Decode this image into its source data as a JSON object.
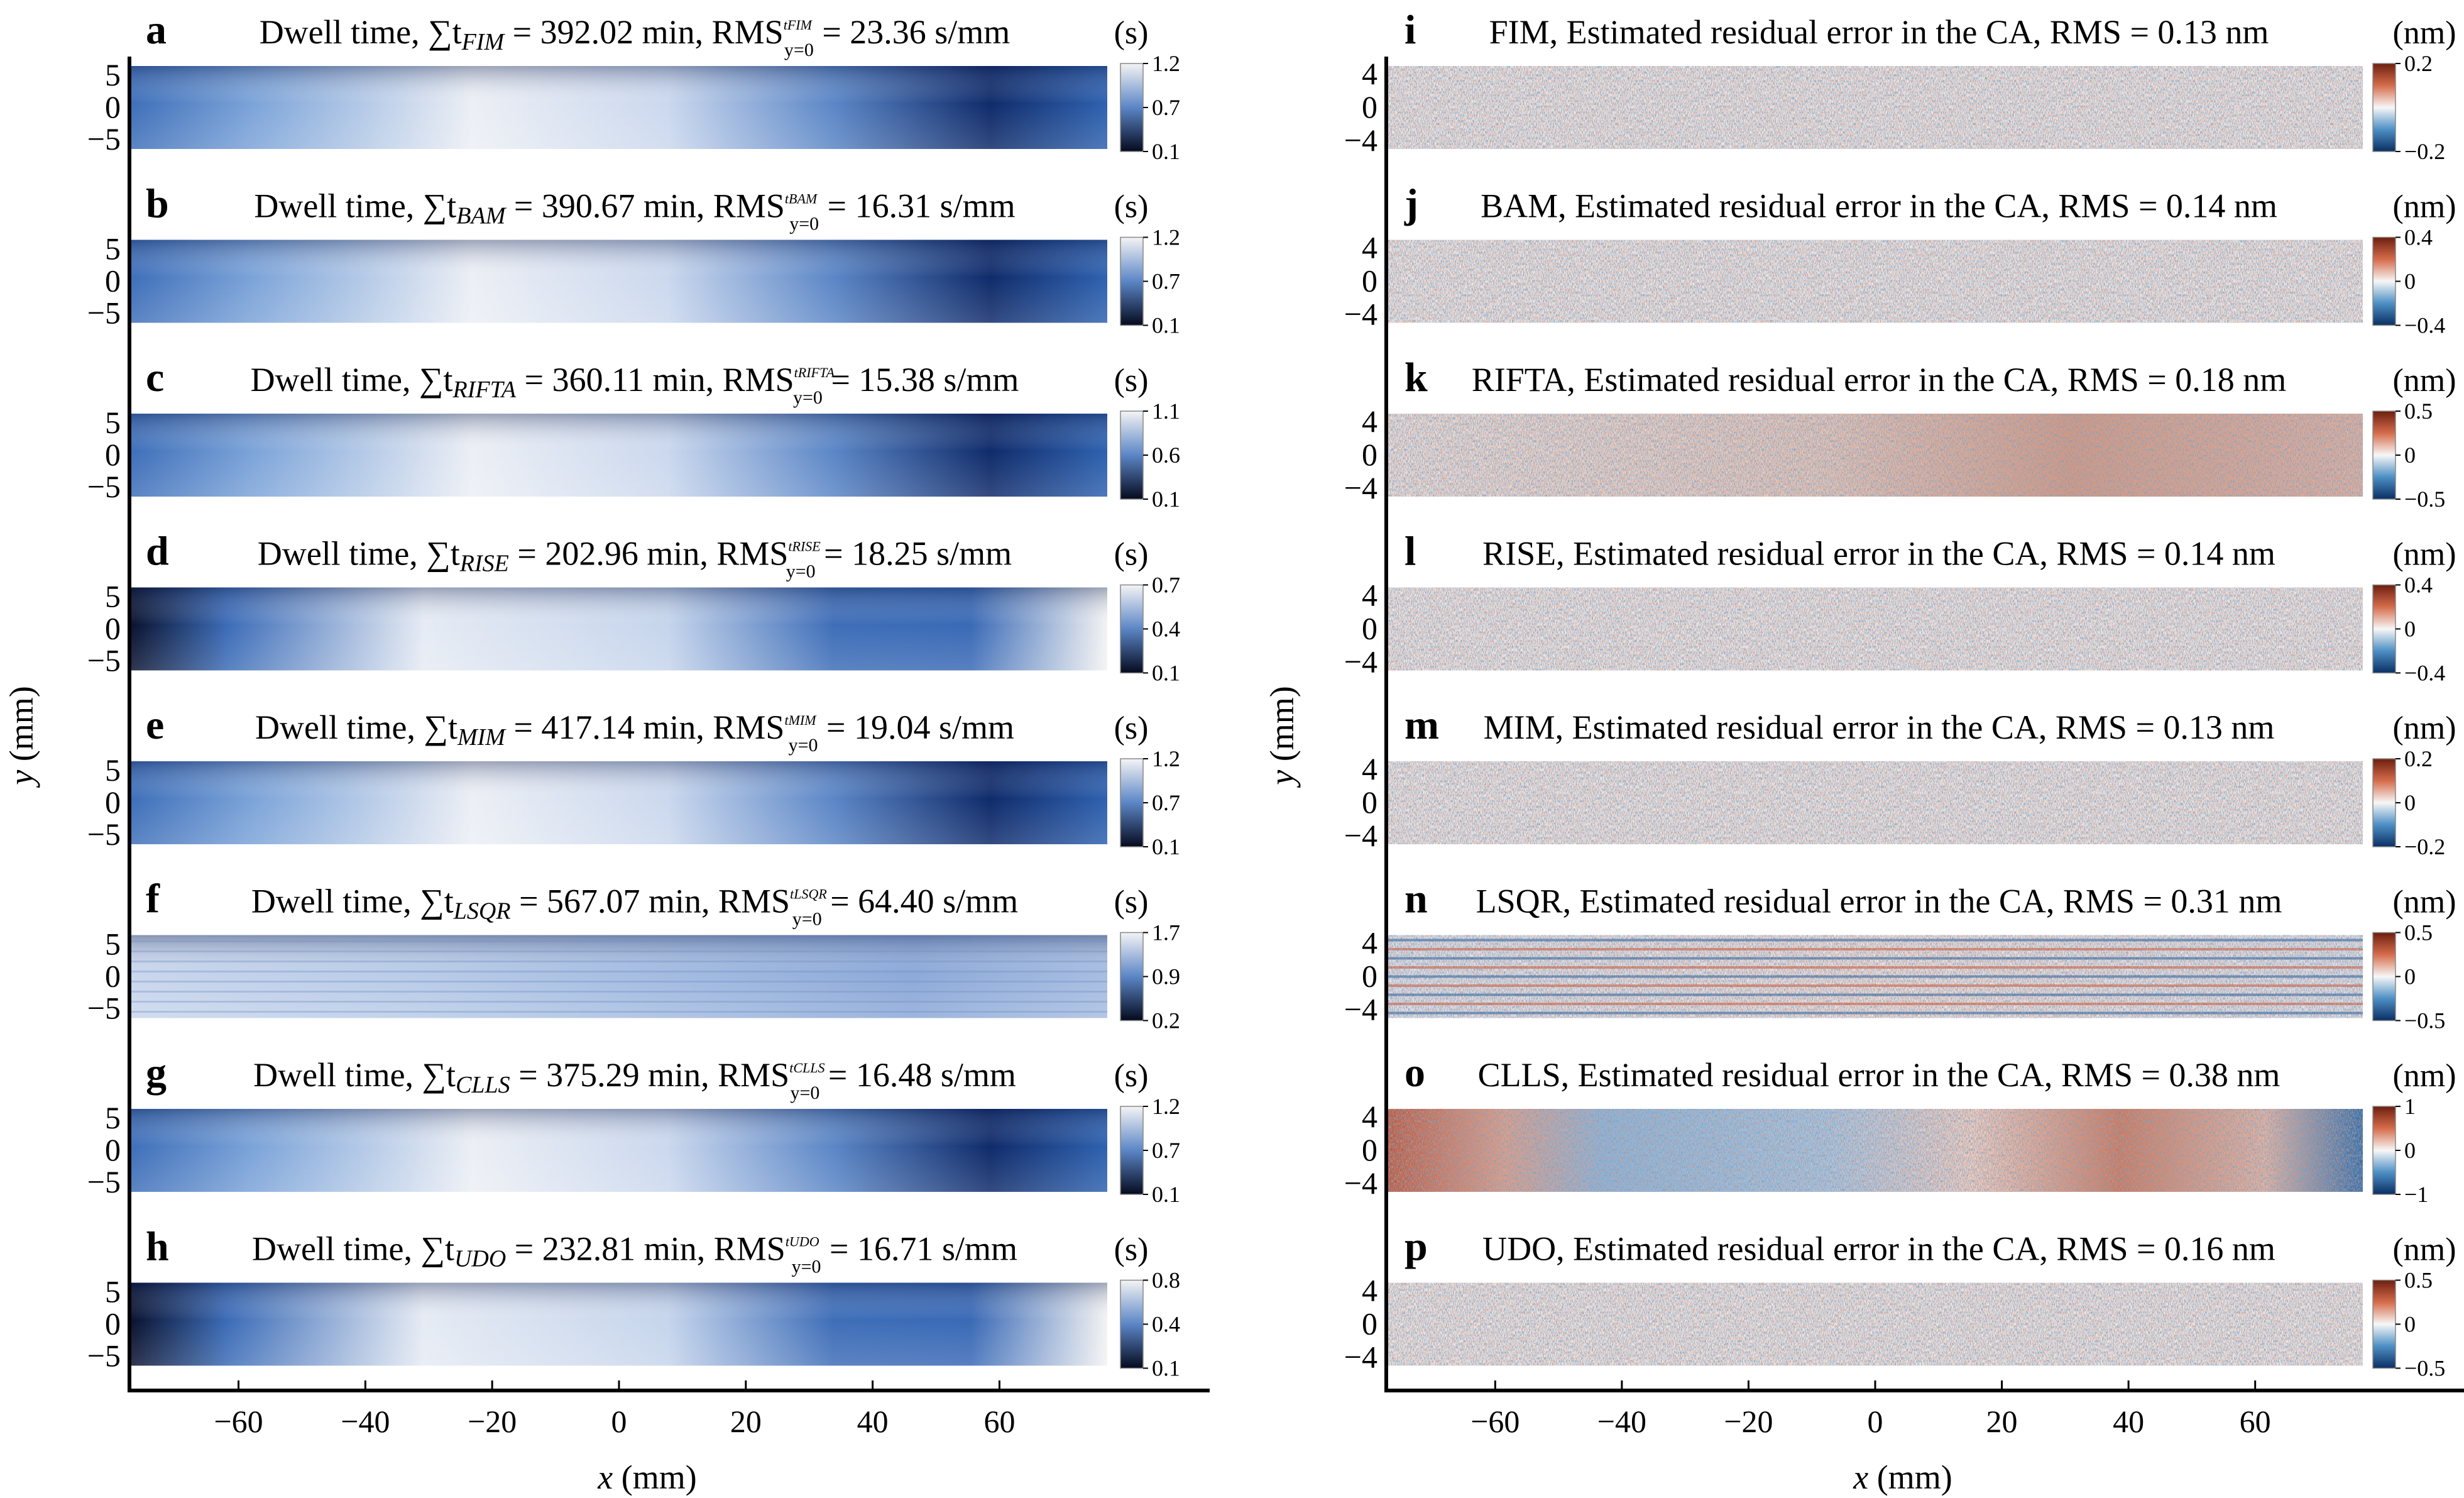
{
  "figure": {
    "left_column": {
      "ylabel": "y (mm)",
      "xlabel": "x (mm)",
      "xticks": [
        "−60",
        "−40",
        "−20",
        "0",
        "20",
        "40",
        "60"
      ],
      "yticks": [
        "5",
        "0",
        "−5"
      ],
      "colorbar_unit": "(s)"
    },
    "right_column": {
      "ylabel": "y (mm)",
      "xlabel": "x (mm)",
      "xticks": [
        "−60",
        "−40",
        "−20",
        "0",
        "20",
        "40",
        "60"
      ],
      "yticks": [
        "4",
        "0",
        "−4"
      ],
      "colorbar_unit": "(nm)"
    }
  },
  "chart_data": [
    {
      "type": "heatmap",
      "panel": "a",
      "title_prefix": "Dwell time, ∑t",
      "method": "FIM",
      "title_mid": " = 392.02 min, RMS",
      "rms_sup": "tFIM",
      "rms_sub": "y=0",
      "title_suffix": " = 23.36 s/mm",
      "colorbar_ticks": [
        "1.2",
        "0.7",
        "0.1"
      ],
      "colormap": "blues",
      "total_time_min": 392.02,
      "rms_s_per_mm": 23.36,
      "xlim": [
        -77,
        77
      ],
      "ylim": [
        -6.5,
        6.5
      ],
      "profile": "bright-center-dark-right"
    },
    {
      "type": "heatmap",
      "panel": "b",
      "title_prefix": "Dwell time, ∑t",
      "method": "BAM",
      "title_mid": " = 390.67 min, RMS",
      "rms_sup": "tBAM",
      "rms_sub": "y=0",
      "title_suffix": " = 16.31 s/mm",
      "colorbar_ticks": [
        "1.2",
        "0.7",
        "0.1"
      ],
      "colormap": "blues",
      "total_time_min": 390.67,
      "rms_s_per_mm": 16.31,
      "xlim": [
        -77,
        77
      ],
      "ylim": [
        -6.5,
        6.5
      ],
      "profile": "bright-center-dark-right"
    },
    {
      "type": "heatmap",
      "panel": "c",
      "title_prefix": "Dwell time, ∑t",
      "method": "RIFTA",
      "title_mid": " = 360.11 min, RMS",
      "rms_sup": "tRIFTA",
      "rms_sub": "y=0",
      "title_suffix": " = 15.38 s/mm",
      "colorbar_ticks": [
        "1.1",
        "0.6",
        "0.1"
      ],
      "colormap": "blues",
      "total_time_min": 360.11,
      "rms_s_per_mm": 15.38,
      "xlim": [
        -77,
        77
      ],
      "ylim": [
        -6.5,
        6.5
      ],
      "profile": "bright-center-dark-right"
    },
    {
      "type": "heatmap",
      "panel": "d",
      "title_prefix": "Dwell time, ∑t",
      "method": "RISE",
      "title_mid": " = 202.96 min, RMS",
      "rms_sup": "tRISE",
      "rms_sub": "y=0",
      "title_suffix": " = 18.25 s/mm",
      "colorbar_ticks": [
        "0.7",
        "0.4",
        "0.1"
      ],
      "colormap": "blues",
      "total_time_min": 202.96,
      "rms_s_per_mm": 18.25,
      "xlim": [
        -77,
        77
      ],
      "ylim": [
        -6.5,
        6.5
      ],
      "profile": "dark-left-bright-ends"
    },
    {
      "type": "heatmap",
      "panel": "e",
      "title_prefix": "Dwell time, ∑t",
      "method": "MIM",
      "title_mid": " = 417.14 min, RMS",
      "rms_sup": "tMIM",
      "rms_sub": "y=0",
      "title_suffix": " = 19.04 s/mm",
      "colorbar_ticks": [
        "1.2",
        "0.7",
        "0.1"
      ],
      "colormap": "blues",
      "total_time_min": 417.14,
      "rms_s_per_mm": 19.04,
      "xlim": [
        -77,
        77
      ],
      "ylim": [
        -6.5,
        6.5
      ],
      "profile": "bright-center-dark-right"
    },
    {
      "type": "heatmap",
      "panel": "f",
      "title_prefix": "Dwell time, ∑t",
      "method": "LSQR",
      "title_mid": " = 567.07 min, RMS",
      "rms_sup": "tLSQR",
      "rms_sub": "y=0",
      "title_suffix": " = 64.40 s/mm",
      "colorbar_ticks": [
        "1.7",
        "0.9",
        "0.2"
      ],
      "colormap": "blues",
      "total_time_min": 567.07,
      "rms_s_per_mm": 64.4,
      "xlim": [
        -77,
        77
      ],
      "ylim": [
        -6.5,
        6.5
      ],
      "profile": "flat-striped"
    },
    {
      "type": "heatmap",
      "panel": "g",
      "title_prefix": "Dwell time, ∑t",
      "method": "CLLS",
      "title_mid": " = 375.29 min, RMS",
      "rms_sup": "tCLLS",
      "rms_sub": "y=0",
      "title_suffix": " = 16.48 s/mm",
      "colorbar_ticks": [
        "1.2",
        "0.7",
        "0.1"
      ],
      "colormap": "blues",
      "total_time_min": 375.29,
      "rms_s_per_mm": 16.48,
      "xlim": [
        -77,
        77
      ],
      "ylim": [
        -6.5,
        6.5
      ],
      "profile": "bright-center-dark-right"
    },
    {
      "type": "heatmap",
      "panel": "h",
      "title_prefix": "Dwell time, ∑t",
      "method": "UDO",
      "title_mid": " = 232.81 min, RMS",
      "rms_sup": "tUDO",
      "rms_sub": "y=0",
      "title_suffix": " = 16.71 s/mm",
      "colorbar_ticks": [
        "0.8",
        "0.4",
        "0.1"
      ],
      "colormap": "blues",
      "total_time_min": 232.81,
      "rms_s_per_mm": 16.71,
      "xlim": [
        -77,
        77
      ],
      "ylim": [
        -6.5,
        6.5
      ],
      "profile": "dark-left-bright-ends"
    },
    {
      "type": "heatmap",
      "panel": "i",
      "title": "FIM, Estimated residual error in the CA, RMS = 0.13 nm",
      "colorbar_ticks": [
        "0.2",
        "−0.2"
      ],
      "colormap": "red-white-blue",
      "rms_nm": 0.13,
      "xlim": [
        -77,
        77
      ],
      "ylim": [
        -5,
        5
      ],
      "profile": "noise"
    },
    {
      "type": "heatmap",
      "panel": "j",
      "title": "BAM, Estimated residual error in the CA, RMS = 0.14 nm",
      "colorbar_ticks": [
        "0.4",
        "0",
        "−0.4"
      ],
      "colormap": "red-white-blue",
      "rms_nm": 0.14,
      "xlim": [
        -77,
        77
      ],
      "ylim": [
        -5,
        5
      ],
      "profile": "noise"
    },
    {
      "type": "heatmap",
      "panel": "k",
      "title": "RIFTA, Estimated residual error in the CA, RMS = 0.18 nm",
      "colorbar_ticks": [
        "0.5",
        "0",
        "−0.5"
      ],
      "colormap": "red-white-blue",
      "rms_nm": 0.18,
      "xlim": [
        -77,
        77
      ],
      "ylim": [
        -5,
        5
      ],
      "profile": "noise-red-right"
    },
    {
      "type": "heatmap",
      "panel": "l",
      "title": "RISE, Estimated residual error in the CA, RMS = 0.14 nm",
      "colorbar_ticks": [
        "0.4",
        "0",
        "−0.4"
      ],
      "colormap": "red-white-blue",
      "rms_nm": 0.14,
      "xlim": [
        -77,
        77
      ],
      "ylim": [
        -5,
        5
      ],
      "profile": "noise"
    },
    {
      "type": "heatmap",
      "panel": "m",
      "title": "MIM, Estimated residual error in the CA, RMS = 0.13 nm",
      "colorbar_ticks": [
        "0.2",
        "0",
        "−0.2"
      ],
      "colormap": "red-white-blue",
      "rms_nm": 0.13,
      "xlim": [
        -77,
        77
      ],
      "ylim": [
        -5,
        5
      ],
      "profile": "noise"
    },
    {
      "type": "heatmap",
      "panel": "n",
      "title": "LSQR, Estimated residual error in the CA, RMS = 0.31 nm",
      "colorbar_ticks": [
        "0.5",
        "0",
        "−0.5"
      ],
      "colormap": "red-white-blue",
      "rms_nm": 0.31,
      "xlim": [
        -77,
        77
      ],
      "ylim": [
        -5,
        5
      ],
      "profile": "striped"
    },
    {
      "type": "heatmap",
      "panel": "o",
      "title": "CLLS, Estimated residual error in the CA, RMS = 0.38 nm",
      "colorbar_ticks": [
        "1",
        "0",
        "−1"
      ],
      "colormap": "red-white-blue",
      "rms_nm": 0.38,
      "xlim": [
        -77,
        77
      ],
      "ylim": [
        -5,
        5
      ],
      "profile": "red-ends-blue-middle"
    },
    {
      "type": "heatmap",
      "panel": "p",
      "title": "UDO, Estimated residual error in the CA, RMS = 0.16 nm",
      "colorbar_ticks": [
        "0.5",
        "0",
        "−0.5"
      ],
      "colormap": "red-white-blue",
      "rms_nm": 0.16,
      "xlim": [
        -77,
        77
      ],
      "ylim": [
        -5,
        5
      ],
      "profile": "noise"
    }
  ]
}
